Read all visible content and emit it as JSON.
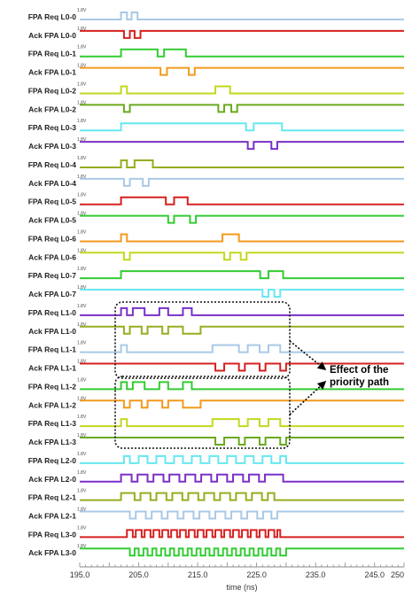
{
  "chart_data": {
    "type": "line",
    "title": "",
    "xlabel": "time (ns)",
    "ylabel": "",
    "xlim": [
      195.0,
      250.0
    ],
    "x_ticks": [
      "195.0",
      "205.0",
      "215.0",
      "225.0",
      "235.0",
      "245.0",
      "250"
    ],
    "x_tick_values": [
      195,
      205,
      215,
      225,
      235,
      245,
      250
    ],
    "grid": false,
    "legend": "none",
    "series": [
      {
        "name": "FPA Req L0-0",
        "voltage": "1.8V",
        "color": "#a9c9e6",
        "initial": 0,
        "edges": [
          202.0,
          203.0,
          203.8,
          204.8
        ]
      },
      {
        "name": "Ack FPA L0-0",
        "voltage": "1.8V",
        "color": "#d62020",
        "initial": 1,
        "edges": [
          202.5,
          203.5,
          204.3,
          205.3
        ]
      },
      {
        "name": "FPA Req L0-1",
        "voltage": "1.8V",
        "color": "#33cc33",
        "initial": 0,
        "edges": [
          202.0,
          208.2,
          209.3,
          213.0
        ]
      },
      {
        "name": "Ack FPA L0-1",
        "voltage": "1.8V",
        "color": "#f39a1e",
        "initial": 1,
        "edges": [
          208.7,
          209.8,
          213.5,
          214.5
        ]
      },
      {
        "name": "FPA Req L0-2",
        "voltage": "1.8V",
        "color": "#c3d81e",
        "initial": 0,
        "edges": [
          202.0,
          203.0,
          218.0,
          220.5
        ]
      },
      {
        "name": "Ack FPA L0-2",
        "voltage": "1.8V",
        "color": "#6aaa1e",
        "initial": 1,
        "edges": [
          202.5,
          203.5,
          218.5,
          219.5,
          220.7,
          221.7
        ]
      },
      {
        "name": "FPA Req L0-3",
        "voltage": "1.8V",
        "color": "#66e8f0",
        "initial": 0,
        "edges": [
          202.0,
          223.2,
          224.5,
          229.3
        ]
      },
      {
        "name": "Ack FPA L0-3",
        "voltage": "1.8V",
        "color": "#7a30c8",
        "initial": 1,
        "edges": [
          223.5,
          224.5,
          227.5,
          228.5
        ]
      },
      {
        "name": "FPA Req L0-4",
        "voltage": "1.8V",
        "color": "#96ad20",
        "initial": 0,
        "edges": [
          202.0,
          203.0,
          204.3,
          207.4
        ]
      },
      {
        "name": "Ack FPA L0-4",
        "voltage": "1.8V",
        "color": "#a9c9e6",
        "initial": 1,
        "edges": [
          202.5,
          203.5,
          205.7,
          206.7
        ]
      },
      {
        "name": "FPA Req L0-5",
        "voltage": "1.8V",
        "color": "#d62020",
        "initial": 0,
        "edges": [
          202.0,
          209.6,
          211.0,
          213.3
        ]
      },
      {
        "name": "Ack FPA L0-5",
        "voltage": "1.8V",
        "color": "#33cc33",
        "initial": 1,
        "edges": [
          210.0,
          211.0,
          213.7,
          214.7
        ]
      },
      {
        "name": "FPA Req L0-6",
        "voltage": "1.8V",
        "color": "#f39a1e",
        "initial": 0,
        "edges": [
          202.0,
          203.0,
          219.2,
          222.0
        ]
      },
      {
        "name": "Ack FPA L0-6",
        "voltage": "1.8V",
        "color": "#c3d81e",
        "initial": 1,
        "edges": [
          202.5,
          203.5,
          219.5,
          220.5,
          222.3,
          223.3
        ]
      },
      {
        "name": "FPA Req L0-7",
        "voltage": "1.8V",
        "color": "#33cc33",
        "initial": 0,
        "edges": [
          202.0,
          225.6,
          227.0,
          229.5
        ]
      },
      {
        "name": "Ack FPA L0-7",
        "voltage": "1.8V",
        "color": "#66e8f0",
        "initial": 1,
        "edges": [
          226.0,
          227.0,
          228.0,
          229.0
        ]
      },
      {
        "name": "FPA Req L1-0",
        "voltage": "1.8V",
        "color": "#7a30c8",
        "initial": 0,
        "edges": [
          202.0,
          203.0,
          204.0,
          206.0,
          208.5,
          210.0,
          212.5,
          214.0
        ]
      },
      {
        "name": "Ack FPA L1-0",
        "voltage": "1.8V",
        "color": "#96ad20",
        "initial": 1,
        "edges": [
          202.5,
          203.5,
          205.5,
          206.5,
          209.0,
          210.0,
          212.5,
          215.5
        ]
      },
      {
        "name": "FPA Req L1-1",
        "voltage": "1.8V",
        "color": "#a9c9e6",
        "initial": 0,
        "edges": [
          202.0,
          203.0,
          217.5,
          222.0,
          223.5,
          225.5,
          227.0,
          229.0
        ]
      },
      {
        "name": "Ack FPA L1-1",
        "voltage": "1.8V",
        "color": "#d62020",
        "initial": 1,
        "edges": [
          218.0,
          219.5,
          222.0,
          223.0,
          225.5,
          226.5,
          229.0,
          230.0
        ]
      },
      {
        "name": "FPA Req L1-2",
        "voltage": "1.8V",
        "color": "#33cc33",
        "initial": 0,
        "edges": [
          202.0,
          203.0,
          204.0,
          206.0,
          208.5,
          210.0,
          212.5,
          214.0
        ]
      },
      {
        "name": "Ack FPA L1-2",
        "voltage": "1.8V",
        "color": "#f39a1e",
        "initial": 1,
        "edges": [
          202.5,
          203.5,
          205.5,
          206.5,
          209.0,
          210.0,
          212.5,
          215.5
        ]
      },
      {
        "name": "FPA Req L1-3",
        "voltage": "1.8V",
        "color": "#c3d81e",
        "initial": 0,
        "edges": [
          202.0,
          203.0,
          217.5,
          222.0,
          223.5,
          225.5,
          227.0,
          229.0
        ]
      },
      {
        "name": "Ack FPA L1-3",
        "voltage": "1.8V",
        "color": "#6aaa1e",
        "initial": 1,
        "edges": [
          218.0,
          219.5,
          222.0,
          223.0,
          225.5,
          226.5,
          229.0,
          230.0
        ]
      },
      {
        "name": "FPA Req L2-0",
        "voltage": "1.8V",
        "color": "#66e8f0",
        "initial": 0,
        "edges": [
          202.5,
          203.5,
          205.0,
          206.5,
          208.0,
          209.5,
          211.0,
          212.5,
          214.0,
          215.5,
          217.0,
          218.5,
          220.0,
          221.5,
          223.0,
          224.5,
          226.0,
          227.5,
          229.0,
          230.0
        ]
      },
      {
        "name": "Ack FPA L2-0",
        "voltage": "1.8V",
        "color": "#7a30c8",
        "initial": 0,
        "edges": [
          202.0,
          203.8,
          204.8,
          206.5,
          207.5,
          209.2,
          210.2,
          211.9,
          212.9,
          214.6,
          215.6,
          217.3,
          218.3,
          220.0,
          221.0,
          222.7,
          223.7,
          225.4,
          226.4,
          229.5
        ]
      },
      {
        "name": "FPA Req L2-1",
        "voltage": "1.8V",
        "color": "#96ad20",
        "initial": 0,
        "edges": [
          202.0,
          204.3,
          205.3,
          207.0,
          208.0,
          209.7,
          210.7,
          212.4,
          213.4,
          215.1,
          216.1,
          217.8,
          218.8,
          220.5,
          221.5,
          223.2,
          224.2,
          225.9,
          226.9,
          228.0
        ]
      },
      {
        "name": "Ack FPA L2-1",
        "voltage": "1.8V",
        "color": "#a9c9e6",
        "initial": 1,
        "edges": [
          203.5,
          204.5,
          206.2,
          207.2,
          208.9,
          209.9,
          211.6,
          212.6,
          214.3,
          215.3,
          217.0,
          218.0,
          219.7,
          220.7,
          222.4,
          223.4,
          225.1,
          226.1,
          227.5,
          228.5
        ]
      },
      {
        "name": "FPA Req L3-0",
        "voltage": "1.8V",
        "color": "#d62020",
        "initial": 0,
        "edges": [
          203.0,
          204.0,
          204.5,
          205.5,
          206.0,
          207.0,
          207.5,
          208.5,
          209.0,
          210.0,
          210.5,
          211.5,
          212.0,
          213.0,
          213.5,
          214.5,
          215.0,
          216.0,
          216.5,
          217.5,
          218.0,
          219.0,
          219.5,
          220.5,
          221.0,
          222.0,
          222.5,
          223.5,
          224.0,
          225.0,
          225.5,
          226.5,
          227.0,
          228.0,
          228.5,
          229.0
        ]
      },
      {
        "name": "Ack FPA L3-0",
        "voltage": "1.8V",
        "color": "#33cc33",
        "initial": 1,
        "edges": [
          203.5,
          204.3,
          205.0,
          205.8,
          206.5,
          207.3,
          208.0,
          208.8,
          209.5,
          210.3,
          211.0,
          211.8,
          212.5,
          213.3,
          214.0,
          214.8,
          215.5,
          216.3,
          217.0,
          217.8,
          218.5,
          219.3,
          220.0,
          220.8,
          221.5,
          222.3,
          223.0,
          223.8,
          224.5,
          225.3,
          226.0,
          226.8,
          227.5,
          228.3,
          229.0,
          230.0
        ]
      }
    ],
    "annotations": [
      {
        "text": "Effect of the priority path",
        "lines": [
          "Effect of the",
          "priority path"
        ]
      }
    ]
  }
}
